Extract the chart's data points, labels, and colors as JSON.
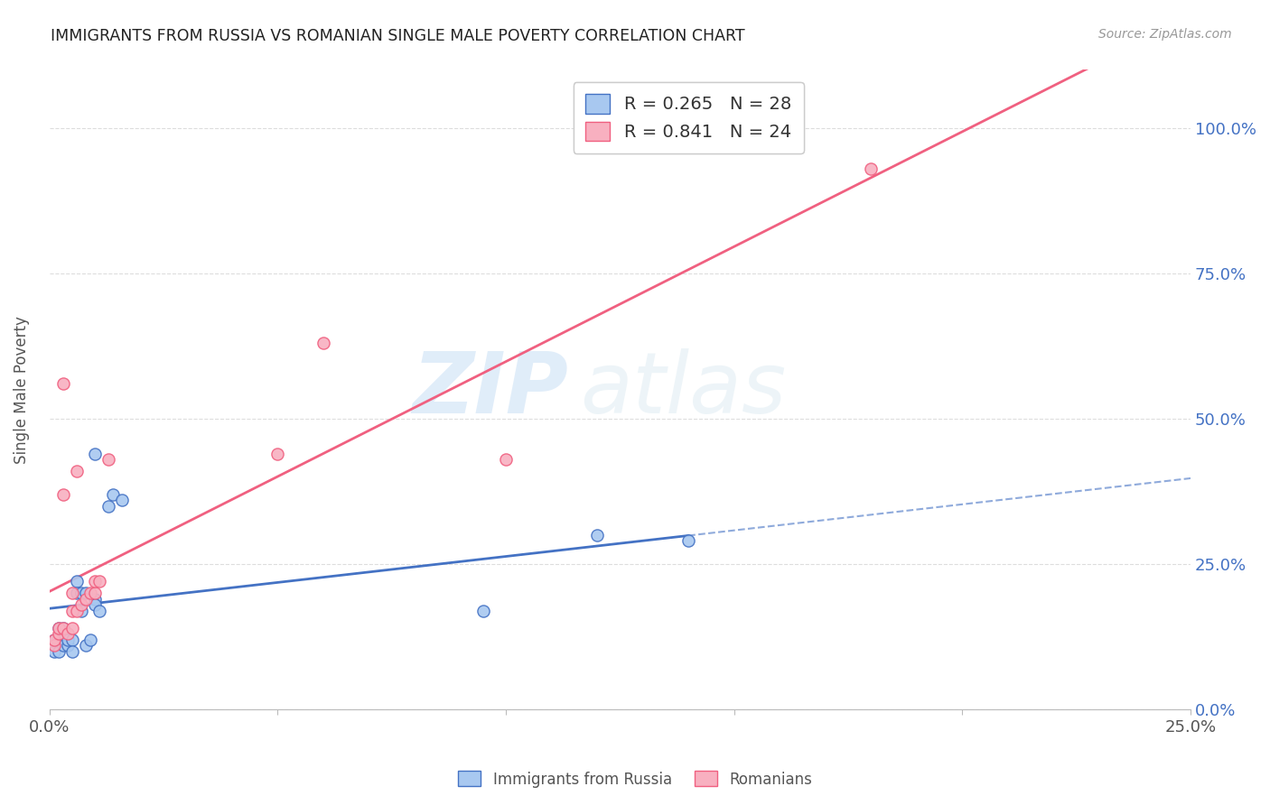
{
  "title": "IMMIGRANTS FROM RUSSIA VS ROMANIAN SINGLE MALE POVERTY CORRELATION CHART",
  "source": "Source: ZipAtlas.com",
  "ylabel": "Single Male Poverty",
  "legend_label1": "R = 0.265   N = 28",
  "legend_label2": "R = 0.841   N = 24",
  "legend_bottom1": "Immigrants from Russia",
  "legend_bottom2": "Romanians",
  "color_russia": "#a8c8f0",
  "color_romania": "#f8b0c0",
  "color_russia_line": "#4472c4",
  "color_romania_line": "#f06080",
  "background": "#ffffff",
  "watermark_zip": "ZIP",
  "watermark_atlas": "atlas",
  "russia_x": [
    0.001,
    0.001,
    0.002,
    0.002,
    0.003,
    0.003,
    0.003,
    0.004,
    0.004,
    0.005,
    0.005,
    0.006,
    0.006,
    0.007,
    0.007,
    0.008,
    0.008,
    0.009,
    0.01,
    0.01,
    0.01,
    0.011,
    0.013,
    0.014,
    0.016,
    0.095,
    0.12,
    0.14
  ],
  "russia_y": [
    0.12,
    0.1,
    0.14,
    0.1,
    0.11,
    0.13,
    0.14,
    0.11,
    0.12,
    0.12,
    0.1,
    0.22,
    0.2,
    0.17,
    0.2,
    0.11,
    0.2,
    0.12,
    0.19,
    0.18,
    0.44,
    0.17,
    0.35,
    0.37,
    0.36,
    0.17,
    0.3,
    0.29
  ],
  "romania_x": [
    0.001,
    0.001,
    0.002,
    0.002,
    0.003,
    0.003,
    0.003,
    0.004,
    0.005,
    0.005,
    0.005,
    0.006,
    0.006,
    0.007,
    0.008,
    0.009,
    0.01,
    0.01,
    0.011,
    0.013,
    0.05,
    0.06,
    0.1,
    0.18
  ],
  "romania_y": [
    0.11,
    0.12,
    0.13,
    0.14,
    0.37,
    0.14,
    0.56,
    0.13,
    0.2,
    0.17,
    0.14,
    0.41,
    0.17,
    0.18,
    0.19,
    0.2,
    0.2,
    0.22,
    0.22,
    0.43,
    0.44,
    0.63,
    0.43,
    0.93
  ],
  "xlim": [
    0.0,
    0.25
  ],
  "ylim": [
    0.05,
    1.1
  ],
  "yticks": [
    0.0,
    0.25,
    0.5,
    0.75,
    1.0
  ],
  "ytick_labels": [
    "0.0%",
    "25.0%",
    "50.0%",
    "75.0%",
    "100.0%"
  ]
}
